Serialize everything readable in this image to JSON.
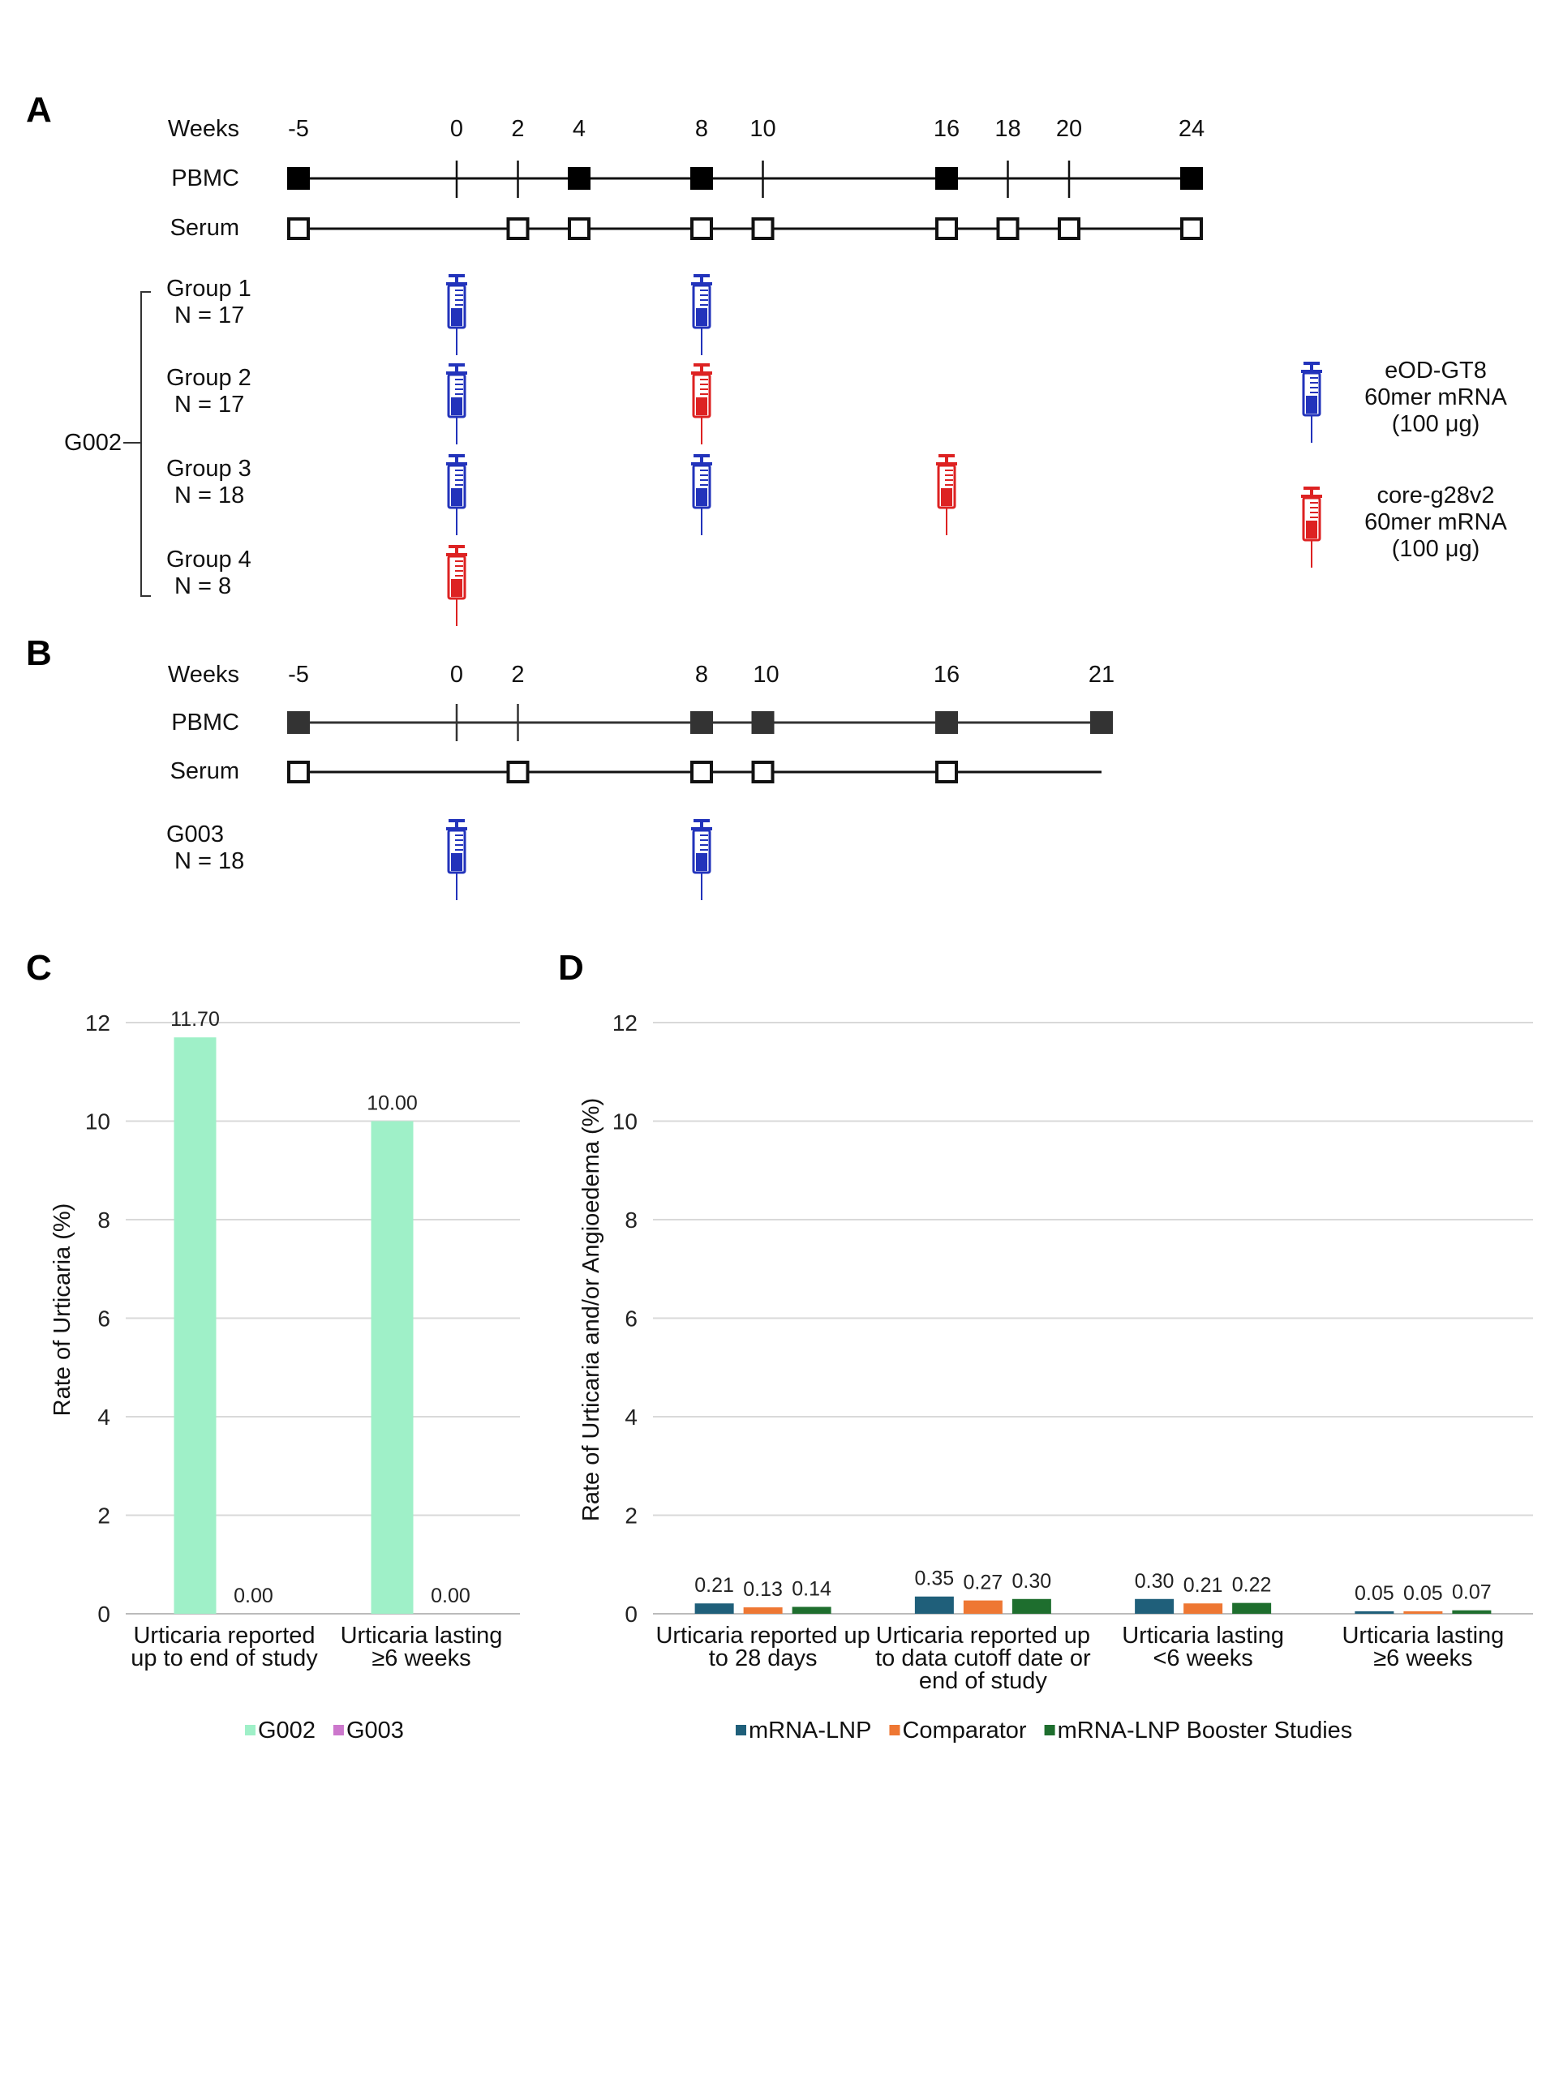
{
  "panels": {
    "A": "A",
    "B": "B",
    "C": "C",
    "D": "D"
  },
  "panel_a": {
    "weeks_label": "Weeks",
    "weeks": [
      "-5",
      "0",
      "2",
      "4",
      "8",
      "10",
      "16",
      "18",
      "20",
      "24"
    ],
    "pbmc_label": "PBMC",
    "pbmc_weeks": [
      "-5",
      "4",
      "8",
      "16",
      "24"
    ],
    "serum_label": "Serum",
    "serum_weeks": [
      "-5",
      "2",
      "4",
      "8",
      "10",
      "16",
      "18",
      "20",
      "24"
    ],
    "study_label": "G002",
    "groups": [
      {
        "name": "Group 1",
        "n": "N = 17",
        "doses": [
          {
            "week": "0",
            "vaccine": "eOD"
          },
          {
            "week": "8",
            "vaccine": "eOD"
          }
        ]
      },
      {
        "name": "Group 2",
        "n": "N = 17",
        "doses": [
          {
            "week": "0",
            "vaccine": "eOD"
          },
          {
            "week": "8",
            "vaccine": "core"
          }
        ]
      },
      {
        "name": "Group 3",
        "n": "N = 18",
        "doses": [
          {
            "week": "0",
            "vaccine": "eOD"
          },
          {
            "week": "8",
            "vaccine": "eOD"
          },
          {
            "week": "16",
            "vaccine": "core"
          }
        ]
      },
      {
        "name": "Group 4",
        "n": "N = 8",
        "doses": [
          {
            "week": "0",
            "vaccine": "core"
          }
        ]
      }
    ],
    "legend": [
      {
        "key": "eOD",
        "icon": "syringe-icon",
        "color": "#2233bb",
        "lines": [
          "eOD-GT8",
          "60mer mRNA",
          "(100 μg)"
        ]
      },
      {
        "key": "core",
        "icon": "syringe-icon",
        "color": "#dd2222",
        "lines": [
          "core-g28v2",
          "60mer mRNA",
          "(100 μg)"
        ]
      }
    ]
  },
  "panel_b": {
    "weeks_label": "Weeks",
    "weeks": [
      "-5",
      "0",
      "2",
      "8",
      "10",
      "16",
      "21"
    ],
    "pbmc_label": "PBMC",
    "pbmc_weeks": [
      "-5",
      "8",
      "10",
      "16",
      "21"
    ],
    "serum_label": "Serum",
    "serum_weeks": [
      "-5",
      "2",
      "8",
      "10",
      "16"
    ],
    "study_name": "G003",
    "study_n": "N = 18",
    "doses": [
      {
        "week": "0",
        "vaccine": "eOD"
      },
      {
        "week": "8",
        "vaccine": "eOD"
      }
    ]
  },
  "chart_data": [
    {
      "id": "C",
      "type": "bar",
      "ylabel": "Rate of Urticaria (%)",
      "ylim": [
        0,
        12
      ],
      "yticks": [
        "0",
        "2",
        "4",
        "6",
        "8",
        "10",
        "12"
      ],
      "grid": true,
      "legend_position": "bottom",
      "categories": [
        [
          "Urticaria reported",
          "up to end of study"
        ],
        [
          "Urticaria lasting",
          "≥6 weeks"
        ]
      ],
      "series": [
        {
          "name": "G002",
          "color": "#9ff0c8",
          "values": [
            11.7,
            10.0
          ],
          "labels": [
            "11.70",
            "10.00"
          ]
        },
        {
          "name": "G003",
          "color": "#cc77cc",
          "values": [
            0.0,
            0.0
          ],
          "labels": [
            "0.00",
            "0.00"
          ]
        }
      ]
    },
    {
      "id": "D",
      "type": "bar",
      "ylabel": "Rate of Urticaria and/or Angioedema (%)",
      "ylim": [
        0,
        12
      ],
      "yticks": [
        "0",
        "2",
        "4",
        "6",
        "8",
        "10",
        "12"
      ],
      "grid": true,
      "legend_position": "bottom",
      "categories": [
        [
          "Urticaria reported up",
          "to 28 days"
        ],
        [
          "Urticaria reported up",
          "to data cutoff date or",
          "end of study"
        ],
        [
          "Urticaria lasting",
          "<6 weeks"
        ],
        [
          "Urticaria lasting",
          "≥6 weeks"
        ]
      ],
      "series": [
        {
          "name": "mRNA-LNP",
          "color": "#1f5f7a",
          "values": [
            0.21,
            0.35,
            0.3,
            0.05
          ],
          "labels": [
            "0.21",
            "0.35",
            "0.30",
            "0.05"
          ]
        },
        {
          "name": "Comparator",
          "color": "#ee7733",
          "values": [
            0.13,
            0.27,
            0.21,
            0.05
          ],
          "labels": [
            "0.13",
            "0.27",
            "0.21",
            "0.05"
          ]
        },
        {
          "name": "mRNA-LNP Booster Studies",
          "color": "#1e6e2e",
          "values": [
            0.14,
            0.3,
            0.22,
            0.07
          ],
          "labels": [
            "0.14",
            "0.30",
            "0.22",
            "0.07"
          ]
        }
      ]
    }
  ]
}
